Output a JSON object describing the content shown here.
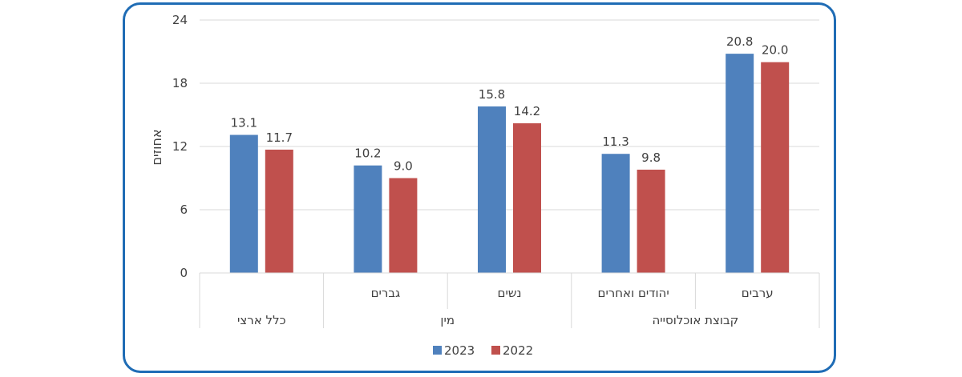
{
  "chart_data": {
    "type": "bar",
    "title": "",
    "ylabel": "אחוזים",
    "ylim": [
      0,
      24
    ],
    "yticks": [
      0,
      6,
      12,
      18,
      24
    ],
    "grid": true,
    "legend_position": "bottom",
    "categories": [
      "ערבים",
      "יהודים ואחרים",
      "נשים",
      "גברים",
      "כלל ארצי"
    ],
    "groups": [
      {
        "label": "קבוצת אוכלוסייה",
        "span": 2
      },
      {
        "label": "מין",
        "span": 2
      },
      {
        "label": "כלל ארצי",
        "span": 1
      }
    ],
    "series": [
      {
        "name": "2023",
        "color": "#4f81bd",
        "values": [
          20.8,
          11.3,
          15.8,
          10.2,
          13.1
        ],
        "labels": [
          "20.8",
          "11.3",
          "15.8",
          "10.2",
          "13.1"
        ]
      },
      {
        "name": "2022",
        "color": "#c0504d",
        "values": [
          20.0,
          9.8,
          14.2,
          9.0,
          11.7
        ],
        "labels": [
          "20.0",
          "9.8",
          "14.2",
          "9.0",
          "11.7"
        ]
      }
    ]
  }
}
